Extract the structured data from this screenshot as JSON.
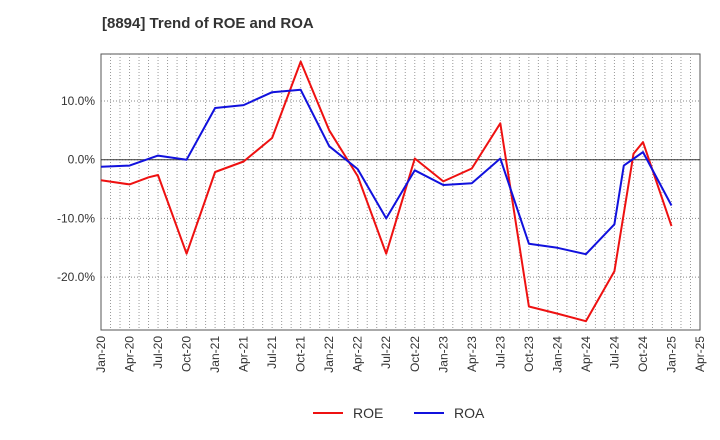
{
  "chart_data": {
    "type": "line",
    "title": "[8894]  Trend of ROE and ROA",
    "xlabel": "",
    "ylabel": "",
    "x_tick_labels": [
      "Jan-20",
      "Apr-20",
      "Jul-20",
      "Oct-20",
      "Jan-21",
      "Apr-21",
      "Jul-21",
      "Oct-21",
      "Jan-22",
      "Apr-22",
      "Jul-22",
      "Oct-22",
      "Jan-23",
      "Apr-23",
      "Jul-23",
      "Oct-23",
      "Jan-24",
      "Apr-24",
      "Jul-24",
      "Oct-24",
      "Jan-25",
      "Apr-25"
    ],
    "y_tick_labels": [
      "10.0%",
      "0.0%",
      "-10.0%",
      "-20.0%"
    ],
    "y_ticks": [
      10,
      0,
      -10,
      -20
    ],
    "ylim": [
      -29,
      18
    ],
    "xlim": [
      0,
      21
    ],
    "grid": true,
    "legend_position": "bottom-center",
    "series": [
      {
        "name": "ROE",
        "color": "#ee1111",
        "points": [
          [
            0,
            -3.5
          ],
          [
            1,
            -4.2
          ],
          [
            1.67,
            -3.0
          ],
          [
            2,
            -2.6
          ],
          [
            3,
            -16.0
          ],
          [
            4,
            -2.1
          ],
          [
            5,
            -0.3
          ],
          [
            6,
            3.7
          ],
          [
            7,
            16.7
          ],
          [
            8,
            5.0
          ],
          [
            9,
            -2.8
          ],
          [
            10,
            -16.0
          ],
          [
            11,
            0.2
          ],
          [
            12,
            -3.7
          ],
          [
            13,
            -1.5
          ],
          [
            14,
            6.2
          ],
          [
            15,
            -25.0
          ],
          [
            16,
            -26.2
          ],
          [
            17,
            -27.5
          ],
          [
            18,
            -19.0
          ],
          [
            18.67,
            1.0
          ],
          [
            19,
            3.0
          ],
          [
            20,
            -11.3
          ]
        ]
      },
      {
        "name": "ROA",
        "color": "#1111dd",
        "points": [
          [
            0,
            -1.2
          ],
          [
            1,
            -1.0
          ],
          [
            2,
            0.7
          ],
          [
            3,
            0.0
          ],
          [
            4,
            8.8
          ],
          [
            5,
            9.3
          ],
          [
            6,
            11.5
          ],
          [
            7,
            11.9
          ],
          [
            8,
            2.3
          ],
          [
            9,
            -1.6
          ],
          [
            10,
            -10.0
          ],
          [
            11,
            -1.8
          ],
          [
            12,
            -4.3
          ],
          [
            13,
            -4.0
          ],
          [
            14,
            0.2
          ],
          [
            15,
            -14.3
          ],
          [
            16,
            -15.0
          ],
          [
            17,
            -16.1
          ],
          [
            18,
            -11.0
          ],
          [
            18.33,
            -1.0
          ],
          [
            19,
            1.3
          ],
          [
            20,
            -7.8
          ]
        ]
      }
    ]
  }
}
